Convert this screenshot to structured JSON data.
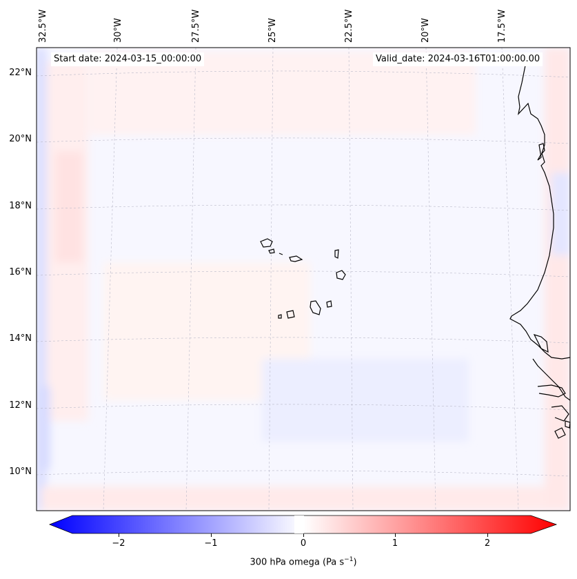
{
  "map": {
    "start_date": "Start date: 2024-03-15_00:00:00",
    "valid_date": "Valid_date: 2024-03-16T01:00:00.00",
    "lon_labels": [
      "32.5°W",
      "30°W",
      "27.5°W",
      "25°W",
      "22.5°W",
      "20°W",
      "17.5°W"
    ],
    "lat_labels": [
      "22°N",
      "20°N",
      "18°N",
      "16°N",
      "14°N",
      "12°N",
      "10°N"
    ],
    "field": "300 hPa omega",
    "colors": {
      "neg_max": "#0000ff",
      "pos_max": "#ff0000",
      "neutral": "#ffffff",
      "coast": "#000000",
      "grid": "#b0b0b0"
    }
  },
  "colorbar": {
    "label_text": "300 hPa omega (Pa s",
    "label_sup": "−1",
    "label_close": ")",
    "ticks": [
      "−2",
      "−1",
      "0",
      "1",
      "2"
    ],
    "tick_values": [
      -2,
      -1,
      0,
      1,
      2
    ],
    "range": [
      -2.6,
      2.6
    ],
    "cmap": "bwr"
  }
}
